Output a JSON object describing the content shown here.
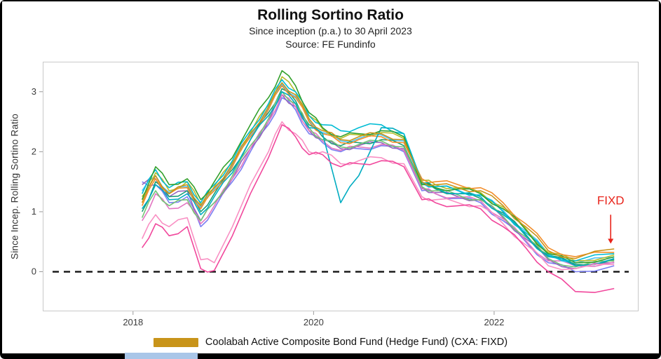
{
  "legend": {
    "swatch_color": "#c8941a",
    "label": "Coolabah Active Composite Bond Fund (Hedge Fund) (CXA: FIXD)"
  },
  "chart_data": {
    "type": "line",
    "title": "Rolling Sortino Ratio",
    "subtitle": "Since inception (p.a.) to 30 April 2023",
    "source": "Source: FE Fundinfo",
    "xlabel": "",
    "ylabel": "Since Incep. Rolling Sortino Ratio",
    "xlim": [
      2017.0,
      2023.6
    ],
    "ylim": [
      -0.66,
      3.5
    ],
    "x_ticks": [
      2018,
      2020,
      2022
    ],
    "y_ticks": [
      0,
      1,
      2,
      3
    ],
    "grid": false,
    "zero_line": 0,
    "legend_position": "bottom",
    "x": [
      2018.1,
      2018.25,
      2018.4,
      2018.6,
      2018.75,
      2018.9,
      2019.1,
      2019.3,
      2019.5,
      2019.65,
      2019.8,
      2019.95,
      2020.1,
      2020.3,
      2020.5,
      2020.75,
      2021.0,
      2021.2,
      2021.35,
      2021.6,
      2021.85,
      2022.1,
      2022.35,
      2022.6,
      2022.9,
      2023.33
    ],
    "series": [
      {
        "name": "unlabeled-line-periwinkle",
        "color": "#7b7ff2",
        "values": [
          1.5,
          1.45,
          1.15,
          1.25,
          0.75,
          1.05,
          1.5,
          2.0,
          2.45,
          2.9,
          2.7,
          2.3,
          2.15,
          2.0,
          2.05,
          2.1,
          2.0,
          1.35,
          1.3,
          1.22,
          1.15,
          0.85,
          0.5,
          0.15,
          0.0,
          0.1
        ]
      },
      {
        "name": "unlabeled-line-purple",
        "color": "#9467bd",
        "values": [
          1.45,
          1.55,
          1.25,
          1.35,
          0.85,
          1.15,
          1.55,
          2.05,
          2.5,
          2.95,
          2.75,
          2.35,
          2.2,
          2.05,
          2.1,
          2.15,
          2.05,
          1.4,
          1.32,
          1.25,
          1.2,
          0.9,
          0.55,
          0.2,
          0.05,
          0.15
        ]
      },
      {
        "name": "unlabeled-line-orchid",
        "color": "#e377c2",
        "values": [
          0.85,
          1.3,
          1.05,
          1.15,
          0.8,
          1.1,
          1.55,
          2.05,
          2.5,
          2.95,
          2.75,
          2.35,
          2.18,
          2.02,
          2.08,
          2.12,
          2.02,
          1.38,
          1.3,
          1.24,
          1.18,
          0.88,
          0.52,
          0.18,
          0.1,
          0.16
        ]
      },
      {
        "name": "unlabeled-line-skyblue",
        "color": "#4fc3f7",
        "values": [
          1.35,
          1.6,
          1.32,
          1.42,
          1.08,
          1.38,
          1.78,
          2.28,
          2.72,
          3.12,
          2.92,
          2.52,
          2.32,
          2.18,
          2.22,
          2.28,
          2.18,
          1.48,
          1.42,
          1.36,
          1.28,
          1.02,
          0.68,
          0.3,
          0.14,
          0.24
        ]
      },
      {
        "name": "unlabeled-line-teal",
        "color": "#1b9e77",
        "values": [
          1.0,
          1.5,
          1.25,
          1.35,
          1.0,
          1.3,
          1.7,
          2.2,
          2.65,
          3.05,
          2.85,
          2.45,
          2.25,
          2.1,
          2.15,
          2.2,
          2.1,
          1.45,
          1.38,
          1.3,
          1.22,
          0.98,
          0.62,
          0.27,
          0.12,
          0.2
        ]
      },
      {
        "name": "unlabeled-line-lightgreen",
        "color": "#74c476",
        "values": [
          0.9,
          1.35,
          1.1,
          1.2,
          0.85,
          1.15,
          1.6,
          2.1,
          2.55,
          3.0,
          2.8,
          2.4,
          2.2,
          2.08,
          2.12,
          2.18,
          2.08,
          1.42,
          1.35,
          1.28,
          1.2,
          0.92,
          0.58,
          0.22,
          0.08,
          0.18
        ]
      },
      {
        "name": "unlabeled-line-olive",
        "color": "#b8bd2c",
        "values": [
          1.25,
          1.65,
          1.35,
          1.5,
          1.12,
          1.42,
          1.82,
          2.32,
          2.78,
          3.25,
          3.0,
          2.6,
          2.38,
          2.22,
          2.28,
          2.32,
          2.22,
          1.52,
          1.45,
          1.4,
          1.32,
          1.08,
          0.72,
          0.32,
          0.18,
          0.28
        ]
      },
      {
        "name": "unlabeled-line-orange",
        "color": "#f28e2b",
        "values": [
          1.1,
          1.55,
          1.3,
          1.4,
          1.05,
          1.35,
          1.75,
          2.25,
          2.7,
          3.1,
          2.9,
          2.5,
          2.3,
          2.15,
          2.2,
          2.25,
          2.15,
          1.55,
          1.5,
          1.45,
          1.4,
          1.15,
          0.8,
          0.4,
          0.25,
          0.32
        ]
      },
      {
        "name": "unlabeled-line-cyan-dip",
        "color": "#00acc1",
        "values": [
          1.05,
          1.45,
          1.2,
          1.3,
          0.95,
          1.25,
          1.65,
          2.2,
          2.6,
          3.0,
          2.8,
          2.4,
          2.3,
          1.15,
          1.6,
          2.4,
          2.3,
          1.48,
          1.4,
          1.3,
          1.25,
          0.95,
          0.6,
          0.25,
          0.1,
          0.22
        ]
      },
      {
        "name": "unlabeled-line-cyan",
        "color": "#00bcd4",
        "values": [
          1.3,
          1.7,
          1.4,
          1.5,
          1.15,
          1.45,
          1.85,
          2.35,
          2.8,
          3.2,
          3.0,
          2.6,
          2.45,
          2.35,
          2.4,
          2.45,
          2.3,
          1.5,
          1.42,
          1.35,
          1.28,
          1.0,
          0.65,
          0.28,
          0.18,
          0.3
        ]
      },
      {
        "name": "unlabeled-line-green",
        "color": "#33a02c",
        "values": [
          1.2,
          1.75,
          1.45,
          1.55,
          1.2,
          1.5,
          1.9,
          2.45,
          2.9,
          3.35,
          3.1,
          2.65,
          2.4,
          2.25,
          2.3,
          2.35,
          2.25,
          1.45,
          1.4,
          1.38,
          1.3,
          1.05,
          0.7,
          0.3,
          0.15,
          0.25
        ]
      },
      {
        "name": "unlabeled-line-pink",
        "color": "#f98fc3",
        "values": [
          0.55,
          0.95,
          0.75,
          0.9,
          0.2,
          0.15,
          0.75,
          1.45,
          2.0,
          2.5,
          2.3,
          2.0,
          2.0,
          1.8,
          1.85,
          1.9,
          1.8,
          1.25,
          1.2,
          1.15,
          1.1,
          0.8,
          0.45,
          0.1,
          0.05,
          0.12
        ]
      },
      {
        "name": "unlabeled-line-pink-outlier",
        "color": "#f1479c",
        "values": [
          0.4,
          0.8,
          0.6,
          0.75,
          0.05,
          0.02,
          0.6,
          1.3,
          1.9,
          2.45,
          2.25,
          1.95,
          1.95,
          1.75,
          1.8,
          1.85,
          1.75,
          1.2,
          1.15,
          1.1,
          1.05,
          0.75,
          0.4,
          0.0,
          -0.33,
          -0.28
        ]
      },
      {
        "name": "Coolabah Active Composite Bond Fund (Hedge Fund) (CXA: FIXD)",
        "color": "#c8941a",
        "highlighted": true,
        "values": [
          1.15,
          1.6,
          1.3,
          1.45,
          1.1,
          1.4,
          1.8,
          2.3,
          2.75,
          3.15,
          2.95,
          2.55,
          2.35,
          2.2,
          2.25,
          2.3,
          2.2,
          1.5,
          1.45,
          1.4,
          1.35,
          1.1,
          0.75,
          0.35,
          0.22,
          0.38
        ]
      }
    ],
    "annotation": {
      "label": "FIXD",
      "color": "#e8231a",
      "x": 2023.33,
      "text_y": 1.12,
      "arrow_from": 0.95,
      "arrow_to": 0.55
    }
  }
}
